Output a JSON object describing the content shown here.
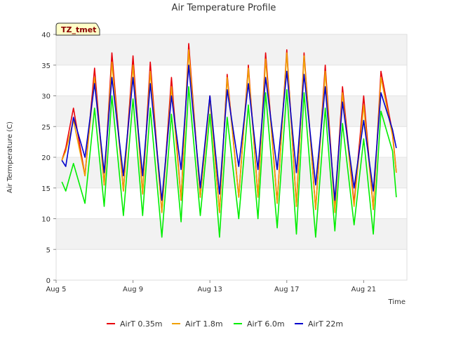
{
  "chart_data": {
    "type": "line",
    "title": "Air Temperature Profile",
    "xlabel": "Time",
    "ylabel": "Air Termperature (C)",
    "annotation": "TZ_tmet",
    "x_unit": "days since Aug 5",
    "xlim": [
      0,
      18.25
    ],
    "ylim": [
      0,
      40
    ],
    "yticks": [
      0,
      5,
      10,
      15,
      20,
      25,
      30,
      35,
      40
    ],
    "xticks": [
      {
        "value": 0,
        "label": "Aug 5"
      },
      {
        "value": 4,
        "label": "Aug 9"
      },
      {
        "value": 8,
        "label": "Aug 13"
      },
      {
        "value": 12,
        "label": "Aug 17"
      },
      {
        "value": 16,
        "label": "Aug 21"
      }
    ],
    "grid": true,
    "legend_position": "bottom",
    "x": [
      0.3,
      0.5,
      0.9,
      1.5,
      2.0,
      2.5,
      2.9,
      3.5,
      4.0,
      4.5,
      4.9,
      5.5,
      6.0,
      6.5,
      6.9,
      7.5,
      8.0,
      8.5,
      8.9,
      9.5,
      10.0,
      10.5,
      10.9,
      11.5,
      12.0,
      12.5,
      12.9,
      13.5,
      14.0,
      14.5,
      14.9,
      15.5,
      16.0,
      16.5,
      16.9,
      17.5,
      17.7
    ],
    "series": [
      {
        "name": "AirT 0.35m",
        "color": "#e8000b",
        "values": [
          19.5,
          21.5,
          28.0,
          17.0,
          34.5,
          15.5,
          37.0,
          14.5,
          36.5,
          14.0,
          35.5,
          11.0,
          33.0,
          13.0,
          38.5,
          13.5,
          30.0,
          11.0,
          33.5,
          13.5,
          35.0,
          13.5,
          37.0,
          12.5,
          37.5,
          12.0,
          37.0,
          11.5,
          35.0,
          11.5,
          31.5,
          12.5,
          30.0,
          11.5,
          34.0,
          24.0,
          17.5
        ]
      },
      {
        "name": "AirT 1.8m",
        "color": "#f0a000",
        "values": [
          19.5,
          21.0,
          26.0,
          17.0,
          33.0,
          15.5,
          35.5,
          14.5,
          35.0,
          14.0,
          34.0,
          11.0,
          31.5,
          13.0,
          37.5,
          13.5,
          29.5,
          11.0,
          33.0,
          13.5,
          34.5,
          13.5,
          36.0,
          12.5,
          37.0,
          12.0,
          36.5,
          11.5,
          34.0,
          11.0,
          30.5,
          12.0,
          28.5,
          11.5,
          33.0,
          23.5,
          17.5
        ]
      },
      {
        "name": "AirT 6.0m",
        "color": "#00ee00",
        "values": [
          16.0,
          14.5,
          19.0,
          12.5,
          28.0,
          12.0,
          30.0,
          10.5,
          29.5,
          10.5,
          28.0,
          7.0,
          27.0,
          9.5,
          31.5,
          10.5,
          27.0,
          7.0,
          26.5,
          10.0,
          28.5,
          10.0,
          30.5,
          8.5,
          31.0,
          7.5,
          30.5,
          7.0,
          28.0,
          8.0,
          25.5,
          9.0,
          23.0,
          7.5,
          27.5,
          21.0,
          13.5
        ]
      },
      {
        "name": "AirT 22m",
        "color": "#0000cd",
        "values": [
          19.5,
          18.5,
          26.5,
          20.0,
          32.0,
          17.5,
          33.0,
          17.0,
          33.0,
          17.0,
          32.0,
          13.0,
          30.0,
          18.0,
          35.0,
          15.0,
          30.0,
          14.0,
          31.0,
          18.5,
          32.0,
          18.0,
          33.0,
          18.0,
          34.0,
          17.5,
          33.5,
          15.5,
          31.5,
          13.0,
          29.0,
          15.0,
          26.0,
          14.5,
          30.5,
          24.5,
          21.5
        ]
      }
    ]
  }
}
